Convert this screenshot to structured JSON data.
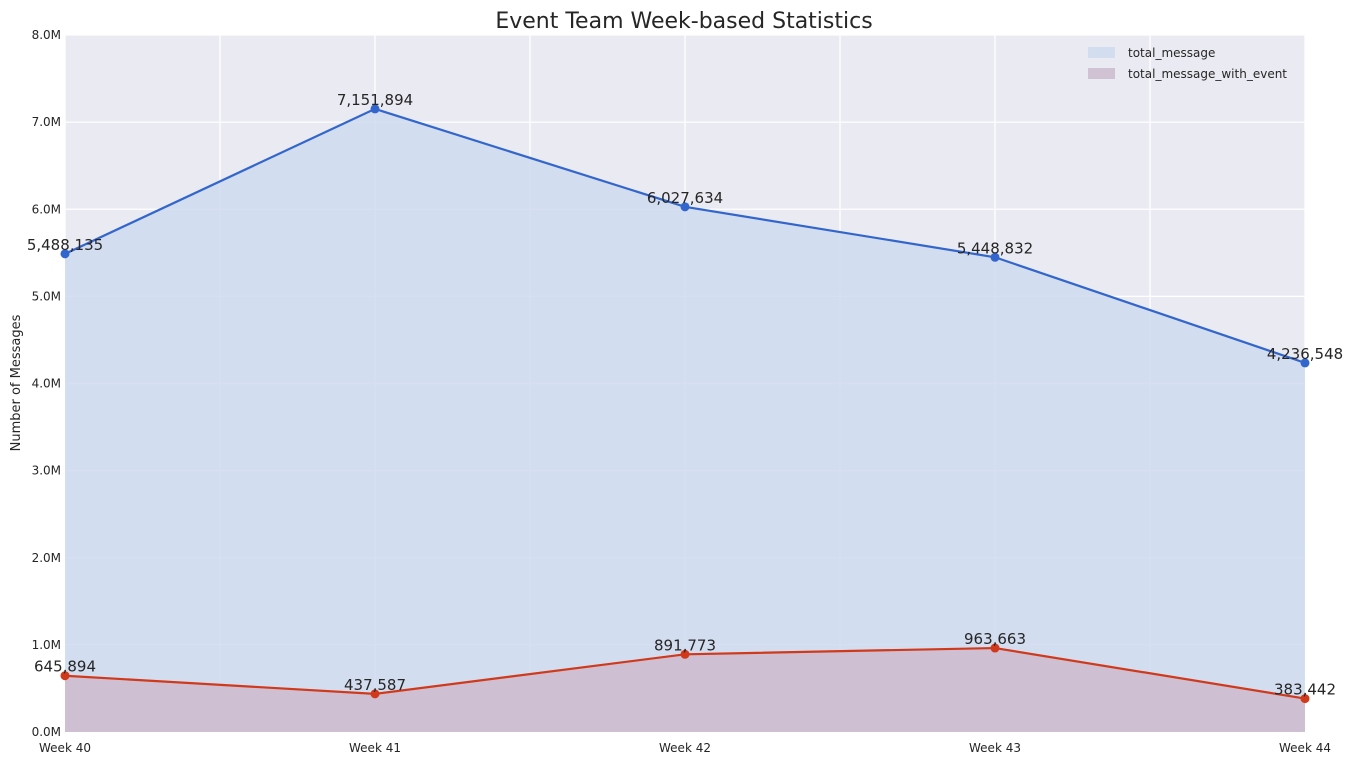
{
  "chart_data": {
    "type": "area",
    "title": "Event Team Week-based Statistics",
    "xlabel": "",
    "ylabel": "Number of Messages",
    "categories": [
      "Week 40",
      "Week 41",
      "Week 42",
      "Week 43",
      "Week 44"
    ],
    "ylim": [
      0,
      8000000
    ],
    "yticks": [
      0,
      1000000,
      2000000,
      3000000,
      4000000,
      5000000,
      6000000,
      7000000,
      8000000
    ],
    "ytick_labels": [
      "0.0M",
      "1.0M",
      "2.0M",
      "3.0M",
      "4.0M",
      "5.0M",
      "6.0M",
      "7.0M",
      "8.0M"
    ],
    "grid": true,
    "legend_position": "top-right",
    "series": [
      {
        "name": "total_message",
        "values": [
          5488135,
          7151894,
          6027634,
          5448832,
          4236548
        ],
        "labels": [
          "5,488,135",
          "7,151,894",
          "6,027,634",
          "5,448,832",
          "4,236,548"
        ],
        "line_color": "#3366cc",
        "fill_color": "#cfdaf0"
      },
      {
        "name": "total_message_with_event",
        "values": [
          645894,
          437587,
          891773,
          963663,
          383442
        ],
        "labels": [
          "645,894",
          "437,587",
          "891,773",
          "963,663",
          "383,442"
        ],
        "line_color": "#d0391a",
        "fill_color": "#cdbbce"
      }
    ],
    "colors": {
      "plot_background": "#eaeaf2",
      "grid": "#ffffff"
    }
  }
}
